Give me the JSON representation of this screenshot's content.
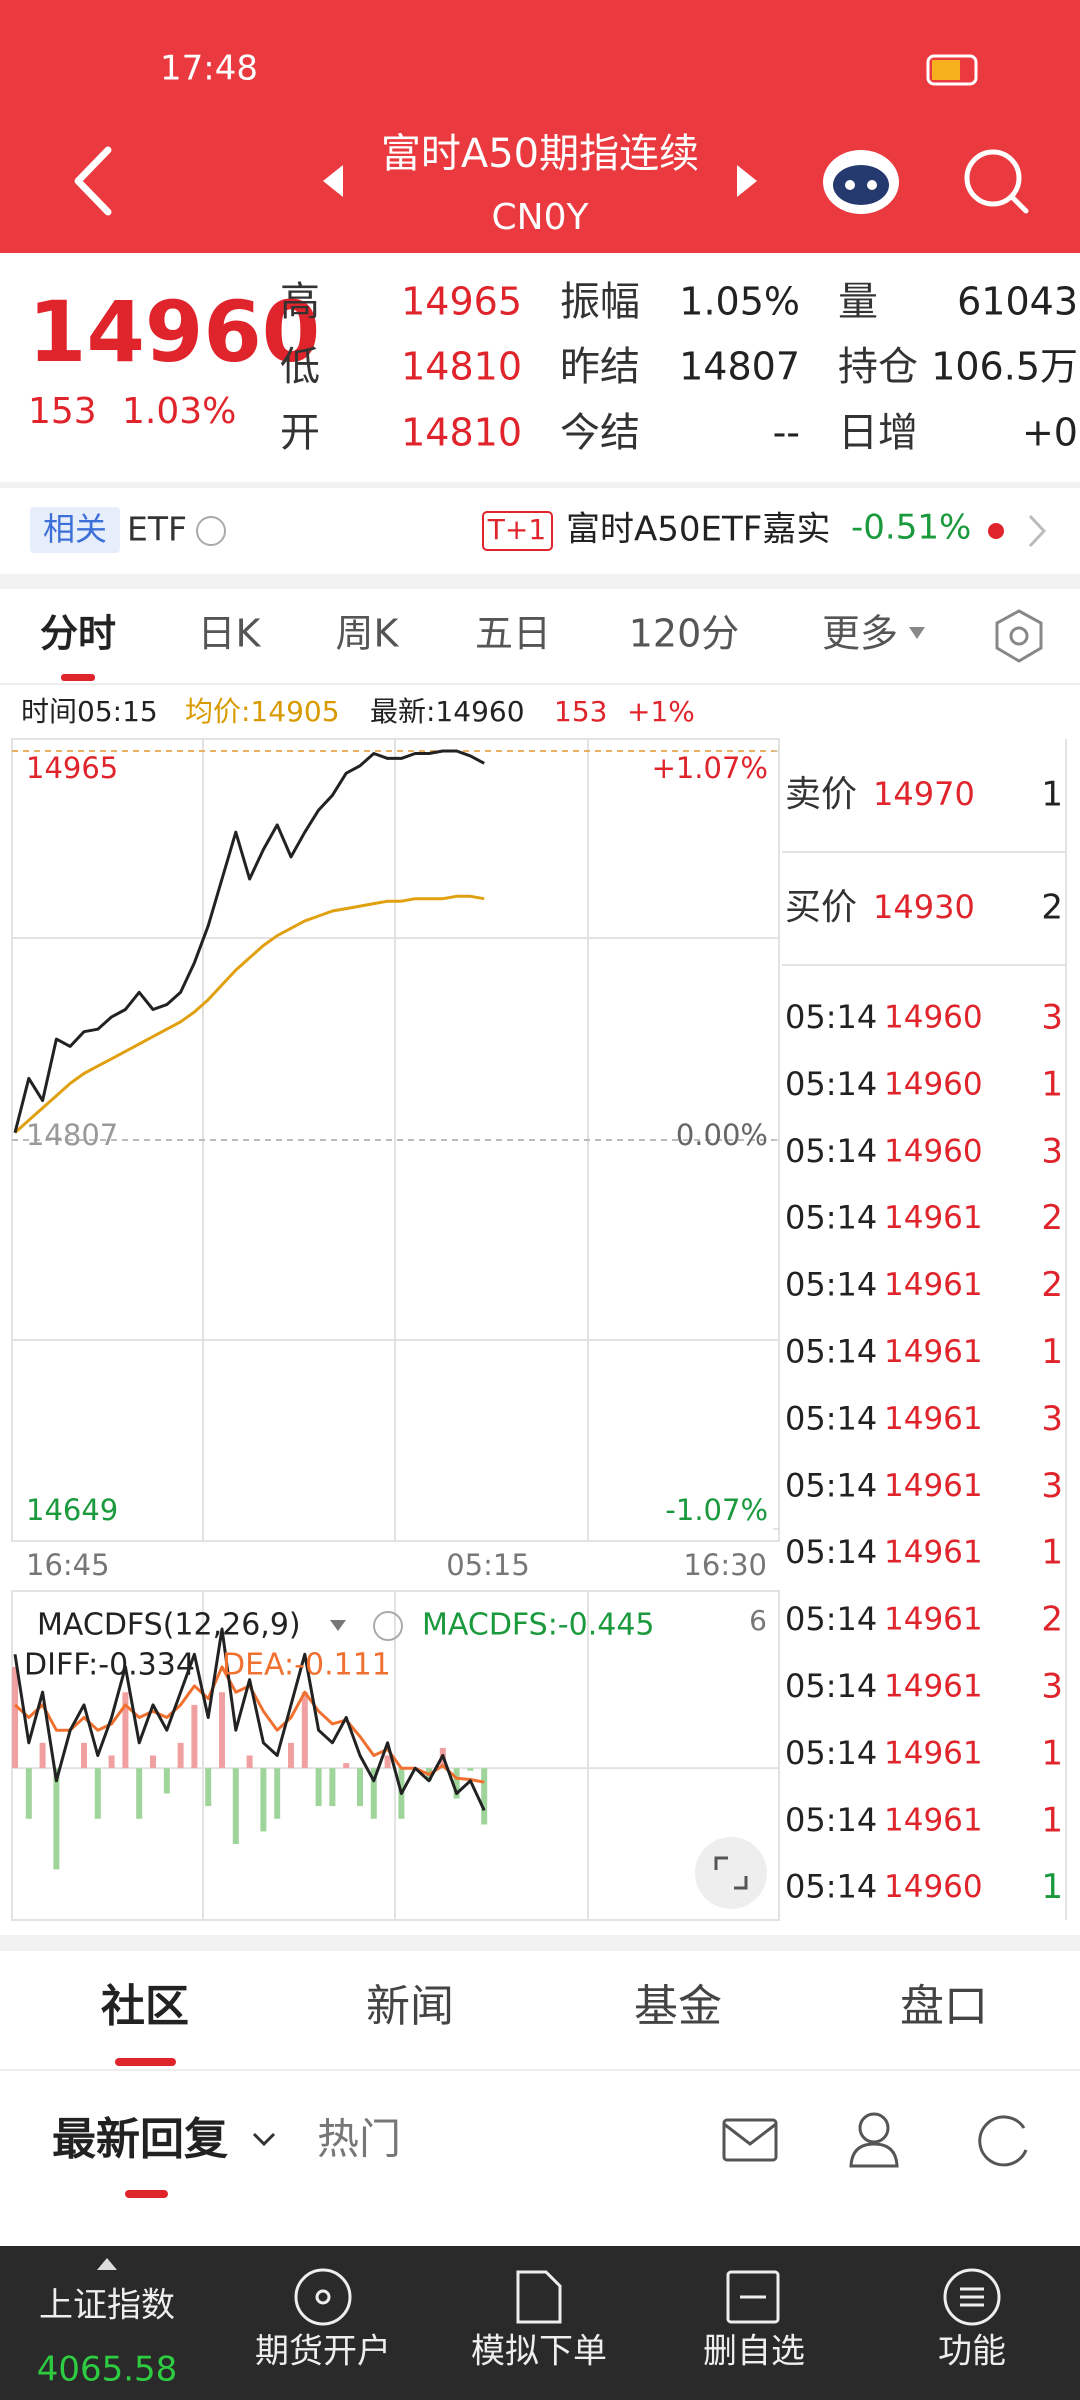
{
  "status_bar": {
    "time": "17:48"
  },
  "header": {
    "title": "富时A50期指连续",
    "code": "CN0Y"
  },
  "quote": {
    "price": "14960",
    "change": "153",
    "change_pct": "1.03%",
    "stats": [
      [
        {
          "label": "高",
          "value": "14965"
        },
        {
          "label": "振幅",
          "value": "1.05%"
        },
        {
          "label": "量",
          "value": "61043"
        }
      ],
      [
        {
          "label": "低",
          "value": "14810"
        },
        {
          "label": "昨结",
          "value": "14807"
        },
        {
          "label": "持仓",
          "value": "106.5万"
        }
      ],
      [
        {
          "label": "开",
          "value": "14810"
        },
        {
          "label": "今结",
          "value": "--"
        },
        {
          "label": "日增",
          "value": "+0"
        }
      ]
    ]
  },
  "etf": {
    "tag": "相关",
    "label": "ETF",
    "badge": "T+1",
    "name": "富时A50ETF嘉实",
    "change": "-0.51%"
  },
  "tabs": [
    "分时",
    "日K",
    "周K",
    "五日",
    "120分",
    "更多"
  ],
  "info": {
    "time": "时间05:15",
    "avg": "均价:14905",
    "latest": "最新:14960",
    "change": "153",
    "change_pct": "+1%"
  },
  "chart_data": {
    "type": "line",
    "ylim": [
      14649,
      14965
    ],
    "yticks": [
      14965,
      14807,
      14649
    ],
    "y2lim": [
      -1.07,
      1.07
    ],
    "y2ticks": [
      {
        "value": 1.07,
        "label": "+1.07%"
      },
      {
        "value": 0,
        "label": "0.00%"
      },
      {
        "value": -1.07,
        "label": "-1.07%"
      }
    ],
    "x_labels": [
      "16:45",
      "05:15",
      "16:30"
    ],
    "series": [
      {
        "name": "最新",
        "color": "#222222",
        "values": [
          14810,
          14832,
          14823,
          14848,
          14845,
          14851,
          14852,
          14857,
          14860,
          14867,
          14860,
          14862,
          14867,
          14879,
          14894,
          14913,
          14932,
          14913,
          14925,
          14935,
          14922,
          14932,
          14941,
          14947,
          14956,
          14959,
          14964,
          14962,
          14962,
          14964,
          14964,
          14965,
          14965,
          14963,
          14960
        ]
      },
      {
        "name": "均价",
        "color": "#e0a010",
        "values": [
          14810,
          14815,
          14820,
          14825,
          14830,
          14834,
          14837,
          14840,
          14843,
          14846,
          14849,
          14852,
          14855,
          14859,
          14864,
          14870,
          14876,
          14881,
          14886,
          14890,
          14893,
          14896,
          14898,
          14900,
          14901,
          14902,
          14903,
          14904,
          14904,
          14905,
          14905,
          14905,
          14906,
          14906,
          14905
        ]
      }
    ]
  },
  "macd": {
    "name": "MACDFS(12,26,9)",
    "value": "MACDFS:-0.445",
    "period": "6",
    "diff_label": "DIFF:-0.334",
    "dea_label": "DEA:-0.111",
    "ylim": [
      -1.2,
      1.4
    ],
    "diff": {
      "color": "#222222",
      "values": [
        0.9,
        0.2,
        0.6,
        -0.1,
        0.3,
        0.5,
        0.1,
        0.4,
        0.8,
        0.2,
        0.5,
        0.3,
        0.6,
        0.9,
        0.4,
        1.1,
        0.3,
        0.7,
        0.2,
        0.1,
        0.5,
        0.9,
        0.3,
        0.2,
        0.4,
        0.1,
        -0.1,
        0.2,
        -0.2,
        0,
        -0.1,
        0.1,
        -0.2,
        -0.1,
        -0.334
      ]
    },
    "dea": {
      "color": "#f07030",
      "values": [
        0.5,
        0.4,
        0.5,
        0.3,
        0.3,
        0.4,
        0.3,
        0.35,
        0.5,
        0.4,
        0.45,
        0.4,
        0.5,
        0.65,
        0.55,
        0.8,
        0.6,
        0.65,
        0.45,
        0.3,
        0.4,
        0.6,
        0.45,
        0.35,
        0.38,
        0.25,
        0.1,
        0.15,
        0,
        0,
        -0.05,
        0.02,
        -0.08,
        -0.09,
        -0.111
      ]
    },
    "hist": {
      "up_color": "#f0a0a0",
      "down_color": "#9fd49a",
      "values": [
        0.8,
        -0.4,
        0.2,
        -0.8,
        0,
        0.2,
        -0.4,
        0.1,
        0.6,
        -0.4,
        0.1,
        -0.2,
        0.2,
        0.5,
        -0.3,
        0.6,
        -0.6,
        0.1,
        -0.5,
        -0.4,
        0.2,
        0.6,
        -0.3,
        -0.3,
        0.04,
        -0.3,
        -0.4,
        0.1,
        -0.4,
        0,
        -0.1,
        0.16,
        -0.24,
        -0.02,
        -0.445
      ]
    }
  },
  "order_book": {
    "ask": {
      "label": "卖价",
      "price": "14970",
      "volume": "1"
    },
    "bid": {
      "label": "买价",
      "price": "14930",
      "volume": "2"
    }
  },
  "trades": [
    {
      "time": "05:14",
      "price": "14960",
      "volume": "3",
      "color": "#e0242c"
    },
    {
      "time": "05:14",
      "price": "14960",
      "volume": "1",
      "color": "#e0242c"
    },
    {
      "time": "05:14",
      "price": "14960",
      "volume": "3",
      "color": "#e0242c"
    },
    {
      "time": "05:14",
      "price": "14961",
      "volume": "2",
      "color": "#e0242c"
    },
    {
      "time": "05:14",
      "price": "14961",
      "volume": "2",
      "color": "#e0242c"
    },
    {
      "time": "05:14",
      "price": "14961",
      "volume": "1",
      "color": "#e0242c"
    },
    {
      "time": "05:14",
      "price": "14961",
      "volume": "3",
      "color": "#e0242c"
    },
    {
      "time": "05:14",
      "price": "14961",
      "volume": "3",
      "color": "#e0242c"
    },
    {
      "time": "05:14",
      "price": "14961",
      "volume": "1",
      "color": "#e0242c"
    },
    {
      "time": "05:14",
      "price": "14961",
      "volume": "2",
      "color": "#e0242c"
    },
    {
      "time": "05:14",
      "price": "14961",
      "volume": "3",
      "color": "#e0242c"
    },
    {
      "time": "05:14",
      "price": "14961",
      "volume": "1",
      "color": "#e0242c"
    },
    {
      "time": "05:14",
      "price": "14961",
      "volume": "1",
      "color": "#e0242c"
    },
    {
      "time": "05:14",
      "price": "14960",
      "volume": "1",
      "color": "#1a9a3c"
    }
  ],
  "section_tabs": [
    "社区",
    "新闻",
    "基金",
    "盘口"
  ],
  "sub_tabs": {
    "latest": "最新回复",
    "hot": "热门"
  },
  "bottom_bar": {
    "index_name": "上证指数",
    "index_value": "4065.58",
    "items": [
      "期货开户",
      "模拟下单",
      "删自选",
      "功能"
    ]
  }
}
